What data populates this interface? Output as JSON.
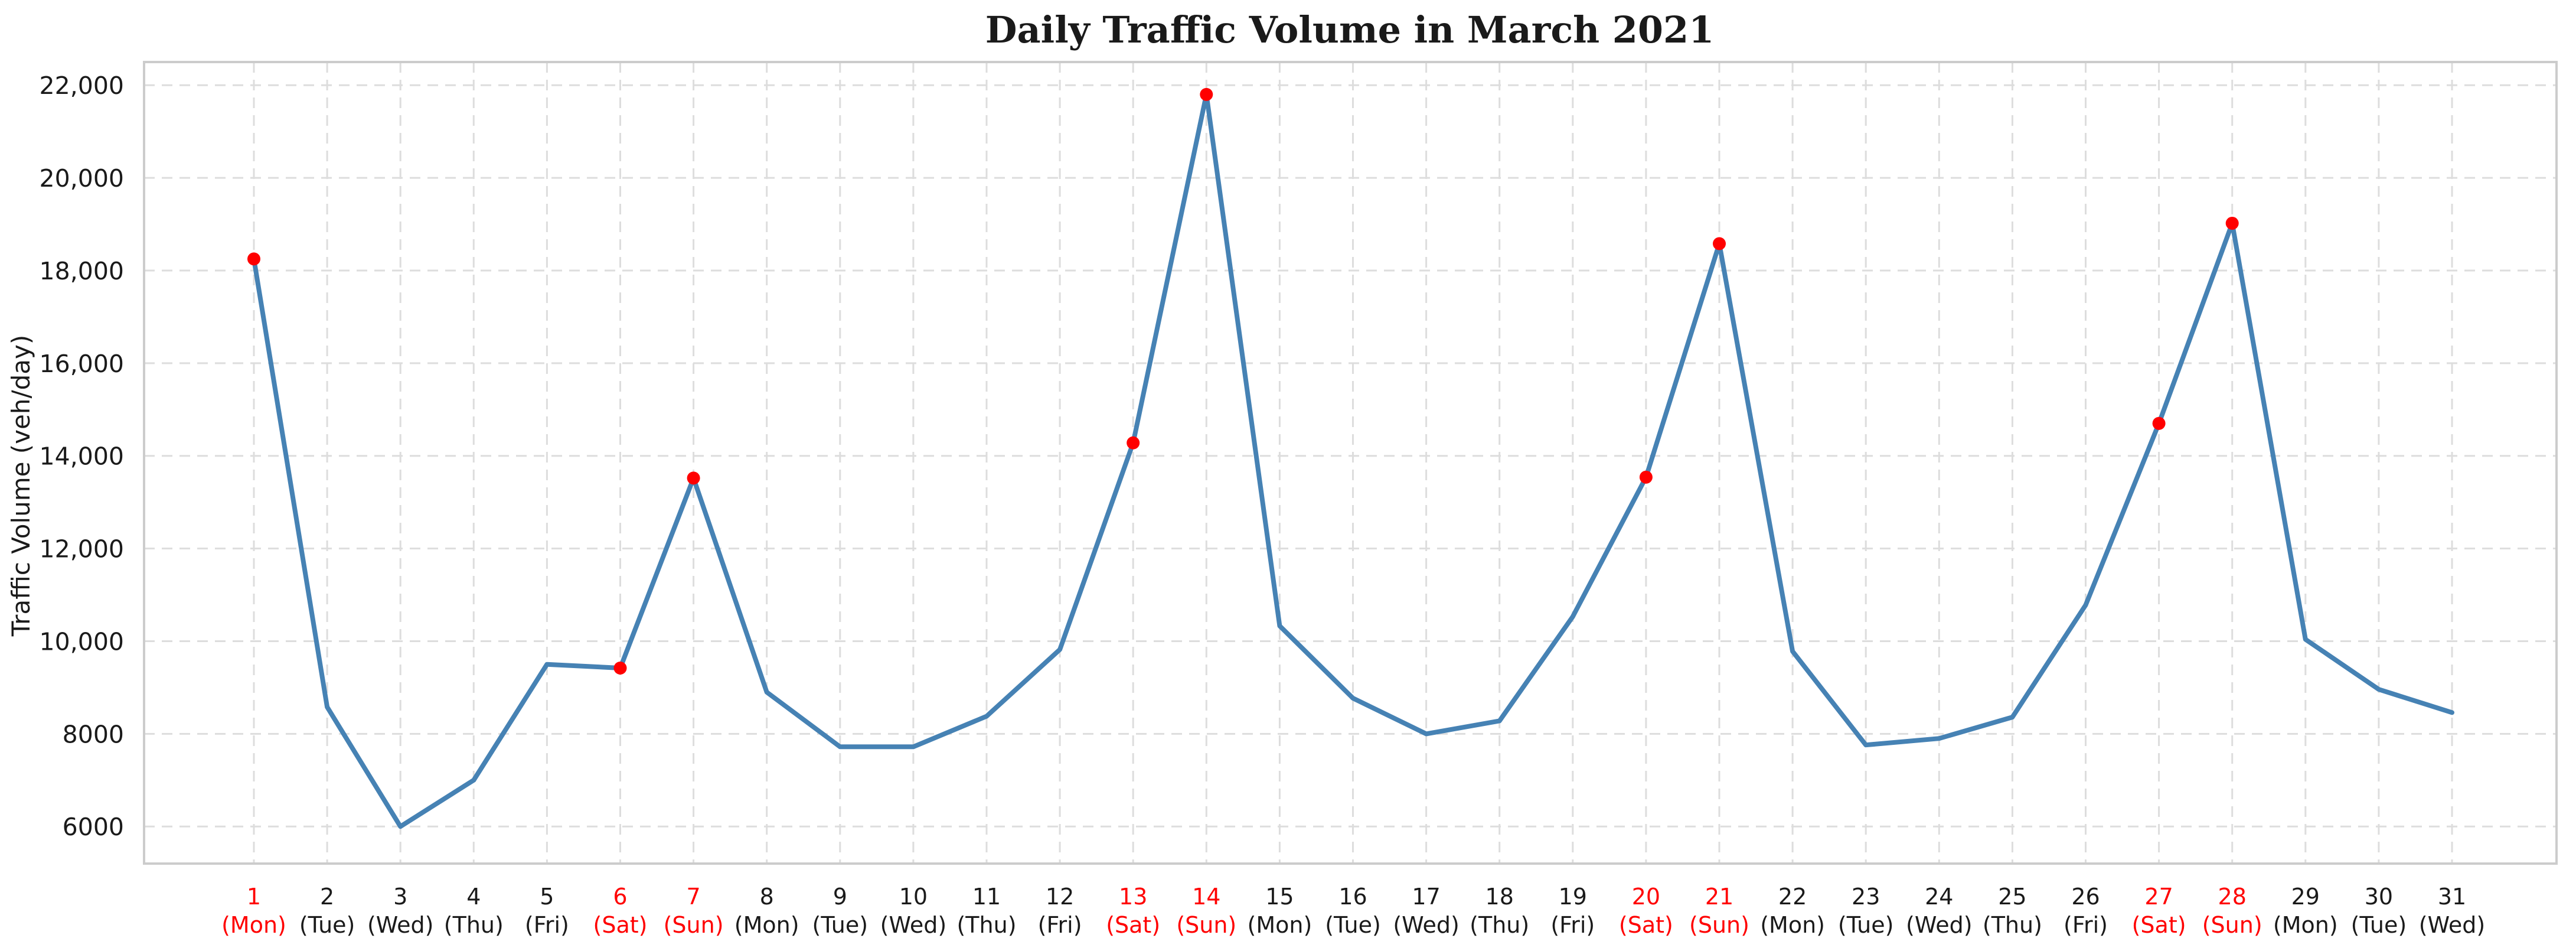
{
  "chart_data": {
    "type": "line",
    "title": "Daily Traffic Volume in March 2021",
    "xlabel": "",
    "ylabel": "Traffic Volume (veh/day)",
    "ylim": [
      5200,
      22500
    ],
    "yticks": [
      6000,
      8000,
      10000,
      12000,
      14000,
      16000,
      18000,
      20000,
      22000
    ],
    "ytick_labels": [
      "6000",
      "8000",
      "10,000",
      "12,000",
      "14,000",
      "16,000",
      "18,000",
      "20,000",
      "22,000"
    ],
    "grid": true,
    "x_day": [
      1,
      2,
      3,
      4,
      5,
      6,
      7,
      8,
      9,
      10,
      11,
      12,
      13,
      14,
      15,
      16,
      17,
      18,
      19,
      20,
      21,
      22,
      23,
      24,
      25,
      26,
      27,
      28,
      29,
      30,
      31
    ],
    "x_weekday": [
      "(Mon)",
      "(Tue)",
      "(Wed)",
      "(Thu)",
      "(Fri)",
      "(Sat)",
      "(Sun)",
      "(Mon)",
      "(Tue)",
      "(Wed)",
      "(Thu)",
      "(Fri)",
      "(Sat)",
      "(Sun)",
      "(Mon)",
      "(Tue)",
      "(Wed)",
      "(Thu)",
      "(Fri)",
      "(Sat)",
      "(Sun)",
      "(Mon)",
      "(Tue)",
      "(Wed)",
      "(Thu)",
      "(Fri)",
      "(Sat)",
      "(Sun)",
      "(Mon)",
      "(Tue)",
      "(Wed)"
    ],
    "highlight_days": [
      1,
      6,
      7,
      13,
      14,
      20,
      21,
      27,
      28
    ],
    "series": [
      {
        "values": [
          18250,
          8580,
          6000,
          7000,
          9500,
          9420,
          13520,
          8900,
          7720,
          7720,
          8380,
          9820,
          14280,
          21800,
          10330,
          8770,
          8000,
          8280,
          10530,
          13540,
          18580,
          9780,
          7760,
          7900,
          8360,
          10780,
          14700,
          19020,
          10040,
          8960,
          8460
        ]
      }
    ],
    "colors": {
      "line": "#4682b4",
      "marker": "#ff0000",
      "highlight_label": "#ff0000",
      "label": "#1a1a1a",
      "grid": "#dddddd",
      "frame": "#cccccc"
    }
  }
}
